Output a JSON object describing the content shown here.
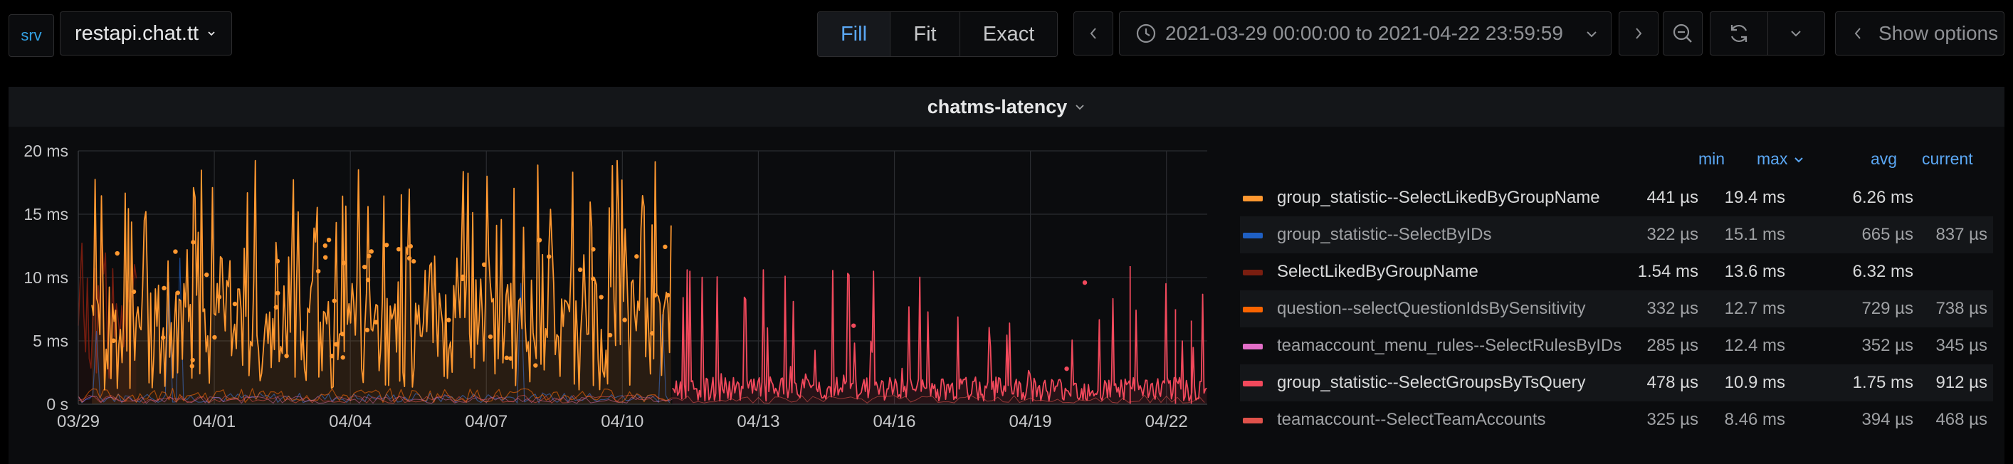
{
  "toolbar": {
    "srv_label": "srv",
    "datasource_value": "restapi.chat.tt",
    "view_modes": [
      "Fill",
      "Fit",
      "Exact"
    ],
    "active_view_mode": "Fill",
    "time_range": "2021-03-29 00:00:00 to 2021-04-22 23:59:59",
    "show_options_label": "Show options",
    "icons": [
      "chevron-down-icon",
      "chevron-left-icon",
      "clock-icon",
      "chevron-right-icon",
      "zoom-out-icon",
      "refresh-icon"
    ]
  },
  "panel": {
    "title": "chatms-latency"
  },
  "chart_data": {
    "type": "line",
    "title": "chatms-latency",
    "xlabel": "",
    "ylabel": "",
    "x_ticks": [
      "03/29",
      "04/01",
      "04/04",
      "04/07",
      "04/10",
      "04/13",
      "04/16",
      "04/19",
      "04/22"
    ],
    "y_ticks": [
      "0 s",
      "5 ms",
      "10 ms",
      "15 ms",
      "20 ms"
    ],
    "ylim": [
      0,
      20
    ],
    "y_unit": "ms",
    "x_range": [
      "2021-03-29",
      "2021-04-22"
    ],
    "grid": true,
    "legend_placement": "right",
    "series": [
      {
        "name": "group_statistic--SelectLikedByGroupName",
        "color": "#ff9830",
        "active_days": [
          0.3,
          13.1
        ],
        "baseline_ms": 5.5,
        "spike_max_ms": 19.4
      },
      {
        "name": "group_statistic--SelectByIDs",
        "color": "#1f60c4",
        "active_days": [
          0,
          13.1
        ],
        "baseline_ms": 0.5,
        "spike_max_ms": 15.1
      },
      {
        "name": "SelectLikedByGroupName",
        "color": "#7a1e10",
        "active_days": [
          0,
          1.3
        ],
        "baseline_ms": 6.3,
        "spike_max_ms": 13.6
      },
      {
        "name": "question--selectQuestionIdsBySensitivity",
        "color": "#fa6400",
        "active_days": [
          0,
          13.1
        ],
        "baseline_ms": 0.7,
        "spike_max_ms": 12.7
      },
      {
        "name": "teamaccount_menu_rules--SelectRulesByIDs",
        "color": "#e36ec8",
        "active_days": [
          0,
          13.1
        ],
        "baseline_ms": 0.35,
        "spike_max_ms": 12.4
      },
      {
        "name": "group_statistic--SelectGroupsByTsQuery",
        "color": "#f2495c",
        "active_days": [
          13.1,
          24.9
        ],
        "baseline_ms": 1.2,
        "spike_max_ms": 10.9
      },
      {
        "name": "teamaccount--SelectTeamAccounts",
        "color": "#e0524b",
        "active_days": [
          0,
          24.9
        ],
        "baseline_ms": 0.4,
        "spike_max_ms": 8.46
      }
    ]
  },
  "legend": {
    "columns": [
      "min",
      "max",
      "avg",
      "current"
    ],
    "sorted_column": "max",
    "rows": [
      {
        "name": "group_statistic--SelectLikedByGroupName",
        "color": "#ff9830",
        "min": "441 µs",
        "max": "19.4 ms",
        "avg": "6.26 ms",
        "current": "",
        "dim": false
      },
      {
        "name": "group_statistic--SelectByIDs",
        "color": "#1f60c4",
        "min": "322 µs",
        "max": "15.1 ms",
        "avg": "665 µs",
        "current": "837 µs",
        "dim": true
      },
      {
        "name": "SelectLikedByGroupName",
        "color": "#7a1e10",
        "min": "1.54 ms",
        "max": "13.6 ms",
        "avg": "6.32 ms",
        "current": "",
        "dim": false
      },
      {
        "name": "question--selectQuestionIdsBySensitivity",
        "color": "#fa6400",
        "min": "332 µs",
        "max": "12.7 ms",
        "avg": "729 µs",
        "current": "738 µs",
        "dim": true
      },
      {
        "name": "teamaccount_menu_rules--SelectRulesByIDs",
        "color": "#e36ec8",
        "min": "285 µs",
        "max": "12.4 ms",
        "avg": "352 µs",
        "current": "345 µs",
        "dim": true
      },
      {
        "name": "group_statistic--SelectGroupsByTsQuery",
        "color": "#f2495c",
        "min": "478 µs",
        "max": "10.9 ms",
        "avg": "1.75 ms",
        "current": "912 µs",
        "dim": false
      },
      {
        "name": "teamaccount--SelectTeamAccounts",
        "color": "#e0524b",
        "min": "325 µs",
        "max": "8.46 ms",
        "avg": "394 µs",
        "current": "468 µs",
        "dim": true
      }
    ]
  }
}
